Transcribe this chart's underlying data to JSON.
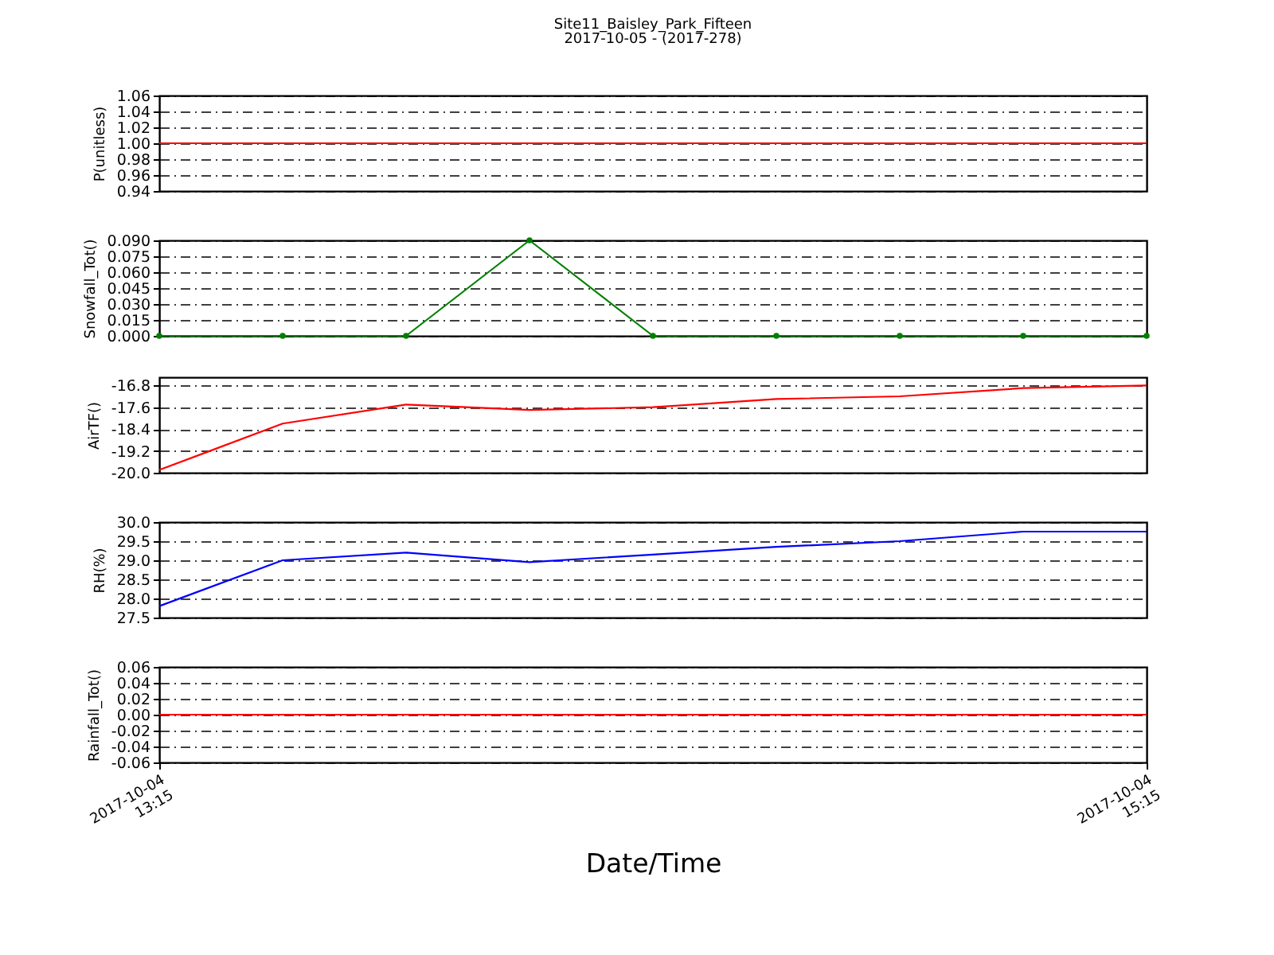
{
  "chart_data": [
    {
      "type": "line",
      "title": "Site11_Baisley_Park_Fifteen",
      "subtitle": "2017-10-05 - (2017-278)",
      "ylabel": "P(unitless)",
      "x": [
        "2017-10-04T13:15",
        "2017-10-04T13:30",
        "2017-10-04T13:45",
        "2017-10-04T14:00",
        "2017-10-04T14:15",
        "2017-10-04T14:30",
        "2017-10-04T14:45",
        "2017-10-04T15:00",
        "2017-10-04T15:15"
      ],
      "series": [
        {
          "color": "#ff0000",
          "values": [
            1.0,
            1.0,
            1.0,
            1.0,
            1.0,
            1.0,
            1.0,
            1.0,
            1.0
          ]
        }
      ],
      "xlim": [
        "2017-10-04T13:15",
        "2017-10-04T15:15"
      ],
      "ylim": [
        0.94,
        1.06
      ],
      "yticks": [
        0.94,
        0.96,
        0.98,
        {
          "value": 1.0,
          "label": "1.00"
        },
        1.02,
        1.04,
        1.06
      ],
      "grid": "y",
      "tick_labels": "y"
    },
    {
      "type": "line",
      "ylabel": "Snowfall_Tot()",
      "x": [
        "2017-10-04T13:15",
        "2017-10-04T13:30",
        "2017-10-04T13:45",
        "2017-10-04T14:00",
        "2017-10-04T14:15",
        "2017-10-04T14:30",
        "2017-10-04T14:45",
        "2017-10-04T15:00",
        "2017-10-04T15:15"
      ],
      "series": [
        {
          "color": "#008000",
          "values": [
            0,
            0,
            0,
            0.09,
            0,
            0,
            0,
            0,
            0
          ]
        }
      ],
      "xlim": [
        "2017-10-04T13:15",
        "2017-10-04T15:15"
      ],
      "ylim": [
        0,
        0.09
      ],
      "yticks": [
        {
          "value": 0,
          "label": "0.000"
        },
        0.015,
        {
          "value": 0.03,
          "label": "0.030"
        },
        0.045,
        {
          "value": 0.06,
          "label": "0.060"
        },
        0.075,
        {
          "value": 0.09,
          "label": "0.090"
        }
      ],
      "grid": "y",
      "tick_labels": "y",
      "marker": "circle"
    },
    {
      "type": "line",
      "ylabel": "AirTF()",
      "x": [
        "2017-10-04T13:15",
        "2017-10-04T13:30",
        "2017-10-04T13:45",
        "2017-10-04T14:00",
        "2017-10-04T14:15",
        "2017-10-04T14:30",
        "2017-10-04T14:45",
        "2017-10-04T15:00",
        "2017-10-04T15:15"
      ],
      "series": [
        {
          "color": "#ff0000",
          "values": [
            -19.9,
            -18.2,
            -17.5,
            -17.7,
            -17.6,
            -17.3,
            -17.2,
            -16.9,
            -16.8
          ]
        }
      ],
      "xlim": [
        "2017-10-04T13:15",
        "2017-10-04T15:15"
      ],
      "ylim": [
        -20.0,
        -16.5
      ],
      "yticks": [
        {
          "value": -20.0,
          "label": "-20.0"
        },
        -19.2,
        -18.4,
        -17.6,
        -16.8
      ],
      "grid": "y",
      "tick_labels": "y"
    },
    {
      "type": "line",
      "ylabel": "RH(%)",
      "x": [
        "2017-10-04T13:15",
        "2017-10-04T13:30",
        "2017-10-04T13:45",
        "2017-10-04T14:00",
        "2017-10-04T14:15",
        "2017-10-04T14:30",
        "2017-10-04T14:45",
        "2017-10-04T15:00",
        "2017-10-04T15:15"
      ],
      "series": [
        {
          "color": "#0000ff",
          "values": [
            27.8,
            29.0,
            29.2,
            28.95,
            29.15,
            29.35,
            29.5,
            29.75,
            29.75
          ]
        }
      ],
      "xlim": [
        "2017-10-04T13:15",
        "2017-10-04T15:15"
      ],
      "ylim": [
        27.5,
        30.0
      ],
      "yticks": [
        27.5,
        {
          "value": 28.0,
          "label": "28.0"
        },
        28.5,
        {
          "value": 29.0,
          "label": "29.0"
        },
        29.5,
        {
          "value": 30.0,
          "label": "30.0"
        }
      ],
      "grid": "y",
      "tick_labels": "y"
    },
    {
      "type": "line",
      "ylabel": "Rainfall_Tot()",
      "xlabel": "Date/Time",
      "x": [
        "2017-10-04T13:15",
        "2017-10-04T13:30",
        "2017-10-04T13:45",
        "2017-10-04T14:00",
        "2017-10-04T14:15",
        "2017-10-04T14:30",
        "2017-10-04T14:45",
        "2017-10-04T15:00",
        "2017-10-04T15:15"
      ],
      "series": [
        {
          "color": "#ff0000",
          "values": [
            0,
            0,
            0,
            0,
            0,
            0,
            0,
            0,
            0
          ]
        }
      ],
      "xlim": [
        "2017-10-04T13:15",
        "2017-10-04T15:15"
      ],
      "xticks": [
        {
          "value": "2017-10-04T13:15",
          "label": "2017-10-04 13:15"
        },
        {
          "value": "2017-10-04T15:15",
          "label": "2017-10-04 15:15"
        }
      ],
      "ylim": [
        -0.06,
        0.06
      ],
      "yticks": [
        -0.06,
        -0.04,
        -0.02,
        {
          "value": 0,
          "label": "0.00"
        },
        0.02,
        0.04,
        0.06
      ],
      "grid": "y"
    }
  ]
}
